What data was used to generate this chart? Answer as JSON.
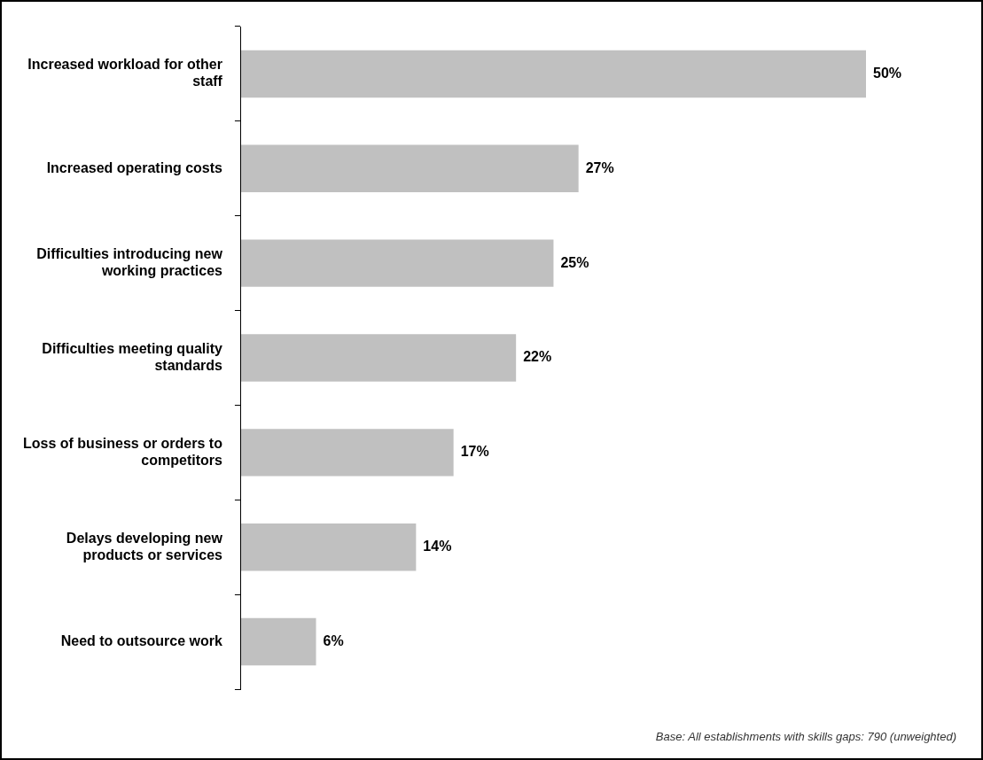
{
  "chart_data": {
    "type": "bar",
    "orientation": "horizontal",
    "categories": [
      "Increased workload for other staff",
      "Increased operating costs",
      "Difficulties introducing new working practices",
      "Difficulties meeting quality standards",
      "Loss of business or orders to competitors",
      "Delays developing new products or services",
      "Need to outsource work"
    ],
    "values": [
      50,
      27,
      25,
      22,
      17,
      14,
      6
    ],
    "value_labels": [
      "50%",
      "27%",
      "25%",
      "22%",
      "17%",
      "14%",
      "6%"
    ],
    "color": "#c0c0c0",
    "annotations": [
      "Base: All establishments with skills gaps: 790 (unweighted)"
    ],
    "legend": false
  }
}
